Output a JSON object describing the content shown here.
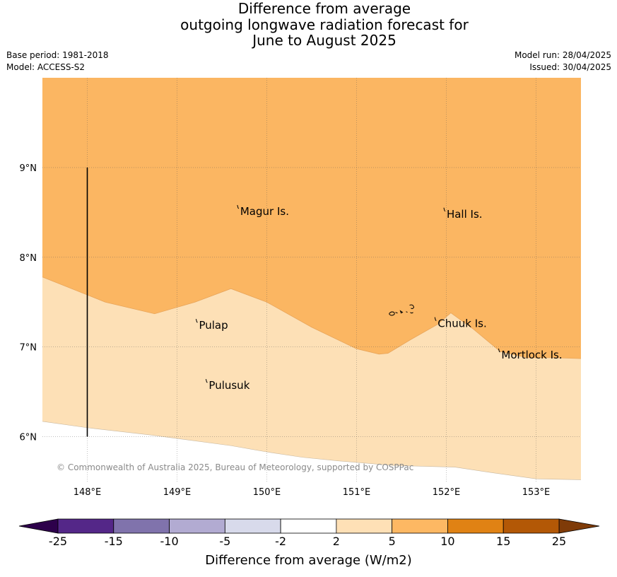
{
  "title": {
    "line1": "Difference from average",
    "line2": "outgoing longwave radiation forecast for",
    "line3": "June to August 2025"
  },
  "meta_left": {
    "base_period": "Base period: 1981-2018",
    "model": "Model: ACCESS-S2"
  },
  "meta_right": {
    "model_run": "Model run: 28/04/2025",
    "issued": "Issued: 30/04/2025"
  },
  "map": {
    "lon_range": [
      147.5,
      153.5
    ],
    "lat_range": [
      5.5,
      10.0
    ],
    "lon_ticks": [
      {
        "value": 148,
        "label": "148°E"
      },
      {
        "value": 149,
        "label": "149°E"
      },
      {
        "value": 150,
        "label": "150°E"
      },
      {
        "value": 151,
        "label": "151°E"
      },
      {
        "value": 152,
        "label": "152°E"
      },
      {
        "value": 153,
        "label": "153°E"
      }
    ],
    "lat_ticks": [
      {
        "value": 9,
        "label": "9°N"
      },
      {
        "value": 8,
        "label": "8°N"
      },
      {
        "value": 7,
        "label": "7°N"
      },
      {
        "value": 6,
        "label": "6°N"
      }
    ],
    "grid": true,
    "regions": [
      {
        "name": "band 5 to 10",
        "color": "#fbb662"
      },
      {
        "name": "band 2 to 5",
        "color": "#fde0b6"
      }
    ],
    "boundary_5": [
      [
        147.5,
        7.78
      ],
      [
        148.2,
        7.5
      ],
      [
        148.75,
        7.37
      ],
      [
        149.2,
        7.5
      ],
      [
        149.6,
        7.65
      ],
      [
        150.0,
        7.5
      ],
      [
        150.5,
        7.22
      ],
      [
        151.0,
        6.98
      ],
      [
        151.25,
        6.92
      ],
      [
        151.35,
        6.93
      ],
      [
        151.6,
        7.08
      ],
      [
        151.9,
        7.25
      ],
      [
        152.05,
        7.38
      ],
      [
        152.3,
        7.2
      ],
      [
        152.6,
        6.95
      ],
      [
        152.9,
        6.88
      ],
      [
        153.2,
        6.88
      ],
      [
        153.5,
        6.87
      ]
    ],
    "boundary_2": [
      [
        147.5,
        6.17
      ],
      [
        148.0,
        6.1
      ],
      [
        148.7,
        6.02
      ],
      [
        149.6,
        5.9
      ],
      [
        150.0,
        5.83
      ],
      [
        150.4,
        5.77
      ],
      [
        150.8,
        5.73
      ],
      [
        151.4,
        5.68
      ],
      [
        152.1,
        5.66
      ],
      [
        152.5,
        5.6
      ],
      [
        153.0,
        5.53
      ],
      [
        153.5,
        5.52
      ]
    ],
    "meridian_line": {
      "lon": 148,
      "lat_from": 6,
      "lat_to": 9
    },
    "places": [
      {
        "name": "Magur Is.",
        "lon": 149.68,
        "lat": 8.55
      },
      {
        "name": "Hall Is.",
        "lon": 151.98,
        "lat": 8.52
      },
      {
        "name": "Pulap",
        "lon": 149.22,
        "lat": 7.28
      },
      {
        "name": "Chuuk Is.",
        "lon": 151.88,
        "lat": 7.3
      },
      {
        "name": "Mortlock Is.",
        "lon": 152.59,
        "lat": 6.95
      },
      {
        "name": "Pulusuk",
        "lon": 149.33,
        "lat": 6.61
      }
    ],
    "copyright": "© Commonwealth of Australia 2025, Bureau of Meteorology, supported by COSPPac"
  },
  "colorbar": {
    "under_color": "#2d004b",
    "over_color": "#7f3b08",
    "bins": [
      {
        "color": "#542788"
      },
      {
        "color": "#8073ac"
      },
      {
        "color": "#b2abd2"
      },
      {
        "color": "#d8daeb"
      },
      {
        "color": "#ffffff"
      },
      {
        "color": "#fee0b6"
      },
      {
        "color": "#fdb863"
      },
      {
        "color": "#e08214"
      },
      {
        "color": "#b35806"
      }
    ],
    "ticks": [
      "-25",
      "-15",
      "-10",
      "-5",
      "-2",
      "2",
      "5",
      "10",
      "15",
      "25"
    ],
    "label": "Difference from average (W/m2)"
  }
}
